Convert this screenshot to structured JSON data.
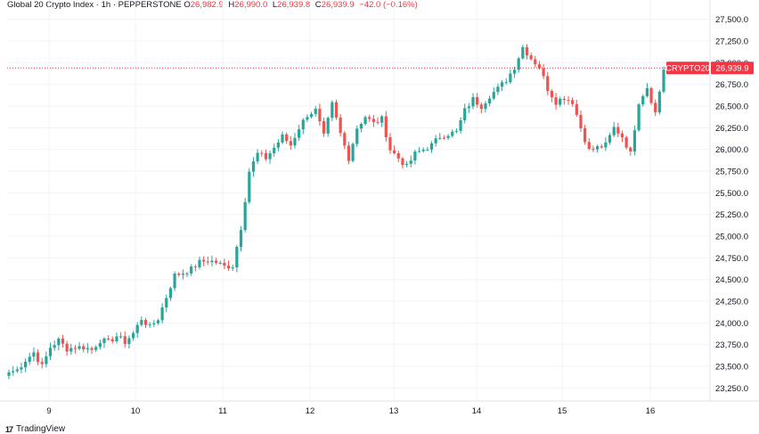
{
  "header": {
    "symbol": "Global 20 Crypto Index · 1h · PEPPERSTONE",
    "o_label": "O",
    "o_value": "26,982.9",
    "h_label": "H",
    "h_value": "26,990.0",
    "l_label": "L",
    "l_value": "26,939.8",
    "c_label": "C",
    "c_value": "26,939.9",
    "change": "−42.0 (−0.16%)"
  },
  "brand": {
    "logo": "17",
    "name": "TradingView"
  },
  "colors": {
    "up": "#26a69a",
    "down": "#ef5350",
    "last_price_line": "#f23645"
  },
  "chart_data": {
    "type": "candlestick",
    "x_ticks": [
      "9",
      "10",
      "11",
      "12",
      "13",
      "14",
      "15",
      "16"
    ],
    "y_ticks": [
      "27,500.0",
      "27,250.0",
      "27,000.0",
      "26,750.0",
      "26,500.0",
      "26,250.0",
      "26,000.0",
      "25,750.0",
      "25,500.0",
      "25,250.0",
      "25,000.0",
      "24,750.0",
      "24,500.0",
      "24,250.0",
      "24,000.0",
      "23,750.0",
      "23,500.0",
      "23,250.0"
    ],
    "ylim": [
      23100,
      27620
    ],
    "last_price": 26939.9,
    "symbol_tag": "CRYPTO20",
    "last_price_label": "26,939.9",
    "grid": true,
    "close_anchors": [
      [
        0,
        23430
      ],
      [
        2,
        23460
      ],
      [
        4,
        23570
      ],
      [
        6,
        23660
      ],
      [
        8,
        23500
      ],
      [
        10,
        23720
      ],
      [
        12,
        23800
      ],
      [
        14,
        23700
      ],
      [
        16,
        23720
      ],
      [
        18,
        23720
      ],
      [
        20,
        23690
      ],
      [
        22,
        23800
      ],
      [
        24,
        23780
      ],
      [
        26,
        23850
      ],
      [
        28,
        23780
      ],
      [
        30,
        23880
      ],
      [
        32,
        24050
      ],
      [
        34,
        23950
      ],
      [
        36,
        24050
      ],
      [
        38,
        24300
      ],
      [
        40,
        24550
      ],
      [
        42,
        24580
      ],
      [
        44,
        24620
      ],
      [
        46,
        24700
      ],
      [
        48,
        24720
      ],
      [
        50,
        24700
      ],
      [
        52,
        24650
      ],
      [
        54,
        24660
      ],
      [
        56,
        25100
      ],
      [
        58,
        25750
      ],
      [
        60,
        25950
      ],
      [
        62,
        25900
      ],
      [
        64,
        26020
      ],
      [
        66,
        26150
      ],
      [
        68,
        26050
      ],
      [
        70,
        26250
      ],
      [
        72,
        26400
      ],
      [
        74,
        26450
      ],
      [
        76,
        26150
      ],
      [
        78,
        26520
      ],
      [
        80,
        26180
      ],
      [
        82,
        25900
      ],
      [
        84,
        26250
      ],
      [
        86,
        26380
      ],
      [
        88,
        26300
      ],
      [
        90,
        26350
      ],
      [
        92,
        26000
      ],
      [
        94,
        25900
      ],
      [
        96,
        25800
      ],
      [
        98,
        25950
      ],
      [
        100,
        26000
      ],
      [
        102,
        26050
      ],
      [
        104,
        26150
      ],
      [
        106,
        26180
      ],
      [
        108,
        26200
      ],
      [
        110,
        26450
      ],
      [
        112,
        26580
      ],
      [
        114,
        26500
      ],
      [
        116,
        26620
      ],
      [
        118,
        26700
      ],
      [
        120,
        26800
      ],
      [
        122,
        26950
      ],
      [
        124,
        27180
      ],
      [
        126,
        27050
      ],
      [
        128,
        26950
      ],
      [
        130,
        26700
      ],
      [
        132,
        26550
      ],
      [
        134,
        26600
      ],
      [
        136,
        26550
      ],
      [
        138,
        26250
      ],
      [
        140,
        25990
      ],
      [
        142,
        26020
      ],
      [
        144,
        26050
      ],
      [
        146,
        26250
      ],
      [
        148,
        26150
      ],
      [
        150,
        25950
      ],
      [
        152,
        26550
      ],
      [
        154,
        26720
      ],
      [
        156,
        26420
      ],
      [
        158,
        26920
      ]
    ]
  }
}
